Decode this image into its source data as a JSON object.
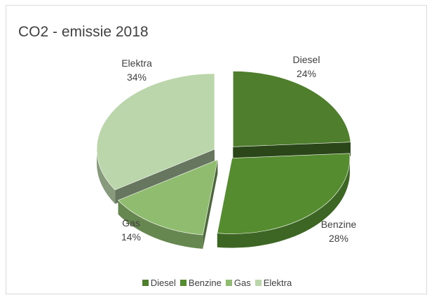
{
  "chart_data": {
    "type": "pie",
    "title": "CO2 - emissie 2018",
    "categories": [
      "Diesel",
      "Benzine",
      "Gas",
      "Elektra"
    ],
    "labels": [
      "24%",
      "28%",
      "14%",
      "34%"
    ],
    "values": [
      24,
      28,
      14,
      34
    ],
    "colors": [
      "#4f7f2d",
      "#558c30",
      "#8fbc6f",
      "#bcd6ab"
    ],
    "legend_position": "bottom",
    "style": "3d-exploded"
  }
}
